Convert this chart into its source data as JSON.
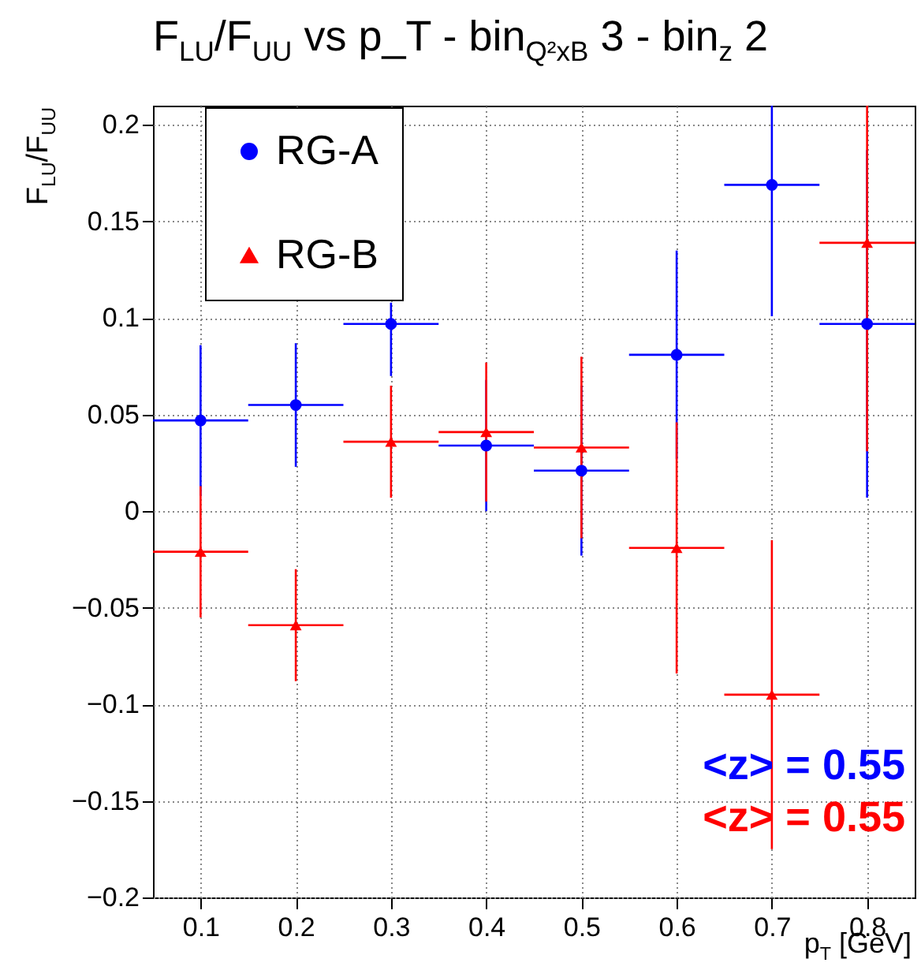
{
  "chart_data": {
    "type": "scatter",
    "title": "F$_{LU}$/F$_{UU}$ vs p_T - bin$_{Q²x}$$_{B}$ 3 - bin$_{z}$ 2",
    "xlabel": "p$_{T}$ [GeV]",
    "ylabel": "F$_{LU}$/F$_{UU}$",
    "x": [
      0.1,
      0.2,
      0.3,
      0.4,
      0.5,
      0.6,
      0.7,
      0.8
    ],
    "series": [
      {
        "name": "RG-A",
        "color": "#0000ff",
        "marker": "circle",
        "values": [
          0.047,
          0.055,
          0.097,
          0.034,
          0.021,
          0.081,
          0.169,
          0.097
        ],
        "errors": [
          0.039,
          0.032,
          [
            0.07,
            0.108
          ],
          0.034,
          0.044,
          0.054,
          [
            0.101,
            0.21
          ],
          0.09
        ],
        "xerrors": [
          0.05,
          0.05,
          0.05,
          0.05,
          0.05,
          0.05,
          0.05,
          0.05
        ]
      },
      {
        "name": "RG-B",
        "color": "#ff0000",
        "marker": "triangle",
        "values": [
          -0.021,
          -0.059,
          0.036,
          0.041,
          0.033,
          -0.019,
          -0.095,
          0.139
        ],
        "errors": [
          0.034,
          0.029,
          0.029,
          0.036,
          0.047,
          0.065,
          0.08,
          [
            0.031,
            0.21
          ]
        ],
        "xerrors": [
          0.05,
          0.05,
          0.05,
          0.05,
          0.05,
          0.05,
          0.05,
          0.05
        ]
      }
    ],
    "xlim": [
      0.05,
      0.85
    ],
    "xticks": [
      0.1,
      0.2,
      0.3,
      0.4,
      0.5,
      0.6,
      0.7,
      0.8
    ],
    "ylim": [
      -0.2,
      0.21
    ],
    "yticks": [
      {
        "value": -0.2,
        "label": "−0.2"
      },
      {
        "value": -0.15,
        "label": "−0.15"
      },
      {
        "value": -0.1,
        "label": "−0.1"
      },
      {
        "value": -0.05,
        "label": "−0.05"
      },
      0,
      0.05,
      0.1,
      0.15,
      0.2
    ],
    "grid": true,
    "legend": "top left",
    "annotations": [
      "<z> = 0.55",
      "<z> = 0.55"
    ]
  }
}
